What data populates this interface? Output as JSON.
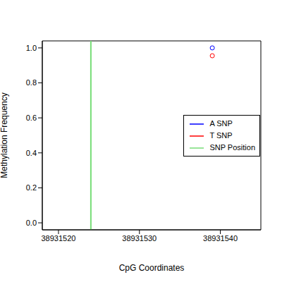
{
  "chart_data": {
    "type": "scatter",
    "x_label": "CpG Coordinates",
    "y_label": "Methylation Frequency",
    "xlim": [
      38931518,
      38931545
    ],
    "xticks": [
      38931520,
      38931530,
      38931540
    ],
    "ylim": [
      -0.04,
      1.04
    ],
    "yticks": [
      {
        "value": 0,
        "label": "0.0"
      },
      0.2,
      0.4,
      0.6,
      0.8,
      {
        "value": 1,
        "label": "1.0"
      }
    ],
    "series": [
      {
        "name": "A SNP",
        "color": "#0000ff",
        "marker": "open_circle",
        "x": [
          38931539
        ],
        "values": [
          1.0
        ]
      },
      {
        "name": "T SNP",
        "color": "#ff0000",
        "marker": "open_circle",
        "x": [
          38931539
        ],
        "values": [
          0.955
        ]
      }
    ],
    "vlines": [
      {
        "name": "SNP Position",
        "color": "#77dd77",
        "x": 38931524
      }
    ],
    "legend": "right"
  }
}
